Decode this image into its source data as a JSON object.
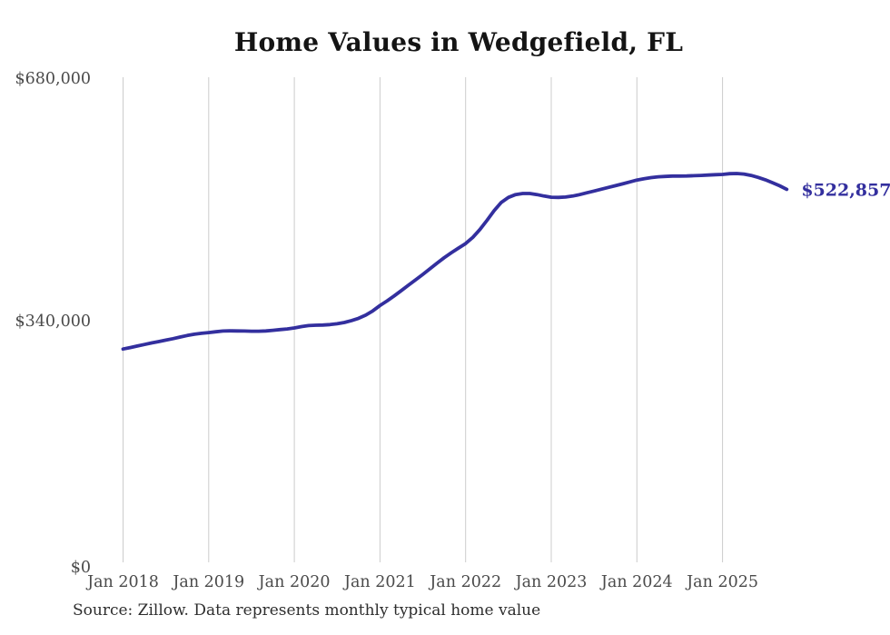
{
  "source_note": "Source: Zillow. Data represents monthly typical home value",
  "chart_data": {
    "type": "line",
    "title": "Home Values in Wedgefield, FL",
    "series_name": "Monthly typical home value",
    "xlabel": "",
    "ylabel": "",
    "ylim": [
      0,
      680000
    ],
    "grid": "vertical-only",
    "legend": "none",
    "line_color": "#332f9e",
    "grid_color": "#cccccc",
    "axis_label_color": "#4a4a4a",
    "end_label": "$522,857",
    "last_value": 522857,
    "y_ticks": [
      {
        "label": "$680,000",
        "value": 680000
      },
      {
        "label": "$340,000",
        "value": 340000
      },
      {
        "label": "$0",
        "value": 0
      }
    ],
    "x_tick_labels": [
      "Jan 2018",
      "Jan 2019",
      "Jan 2020",
      "Jan 2021",
      "Jan 2022",
      "Jan 2023",
      "Jan 2024",
      "Jan 2025"
    ],
    "x": [
      "2018-01",
      "2018-02",
      "2018-03",
      "2018-04",
      "2018-05",
      "2018-06",
      "2018-07",
      "2018-08",
      "2018-09",
      "2018-10",
      "2018-11",
      "2018-12",
      "2019-01",
      "2019-02",
      "2019-03",
      "2019-04",
      "2019-05",
      "2019-06",
      "2019-07",
      "2019-08",
      "2019-09",
      "2019-10",
      "2019-11",
      "2019-12",
      "2020-01",
      "2020-02",
      "2020-03",
      "2020-04",
      "2020-05",
      "2020-06",
      "2020-07",
      "2020-08",
      "2020-09",
      "2020-10",
      "2020-11",
      "2020-12",
      "2021-01",
      "2021-02",
      "2021-03",
      "2021-04",
      "2021-05",
      "2021-06",
      "2021-07",
      "2021-08",
      "2021-09",
      "2021-10",
      "2021-11",
      "2021-12",
      "2022-01",
      "2022-02",
      "2022-03",
      "2022-04",
      "2022-05",
      "2022-06",
      "2022-07",
      "2022-08",
      "2022-09",
      "2022-10",
      "2022-11",
      "2022-12",
      "2023-01",
      "2023-02",
      "2023-03",
      "2023-04",
      "2023-05",
      "2023-06",
      "2023-07",
      "2023-08",
      "2023-09",
      "2023-10",
      "2023-11",
      "2023-12",
      "2024-01",
      "2024-02",
      "2024-03",
      "2024-04",
      "2024-05",
      "2024-06",
      "2024-07",
      "2024-08",
      "2024-09",
      "2024-10",
      "2024-11",
      "2024-12",
      "2025-01",
      "2025-02",
      "2025-03",
      "2025-04",
      "2025-05",
      "2025-06",
      "2025-07",
      "2025-08",
      "2025-09",
      "2025-10"
    ],
    "values": [
      299000,
      301000,
      303200,
      305400,
      307500,
      309500,
      311500,
      313500,
      315800,
      318000,
      319800,
      321000,
      322000,
      323200,
      324200,
      324500,
      324400,
      324200,
      324000,
      324000,
      324400,
      325200,
      326200,
      327200,
      328500,
      330500,
      331800,
      332400,
      332600,
      333200,
      334400,
      336200,
      338800,
      342000,
      346500,
      352500,
      360000,
      366500,
      373500,
      381000,
      388500,
      396000,
      403500,
      411500,
      419500,
      427000,
      434000,
      440500,
      446800,
      455500,
      466500,
      479500,
      493000,
      504500,
      511500,
      515500,
      517000,
      517000,
      515500,
      513500,
      511800,
      511500,
      512000,
      513500,
      515500,
      518000,
      520500,
      523000,
      525500,
      528000,
      530500,
      533200,
      535900,
      537800,
      539300,
      540400,
      541000,
      541400,
      541500,
      541600,
      541900,
      542300,
      542800,
      543300,
      543800,
      544800,
      545000,
      544200,
      542300,
      539600,
      536200,
      532200,
      527800,
      522857
    ]
  }
}
